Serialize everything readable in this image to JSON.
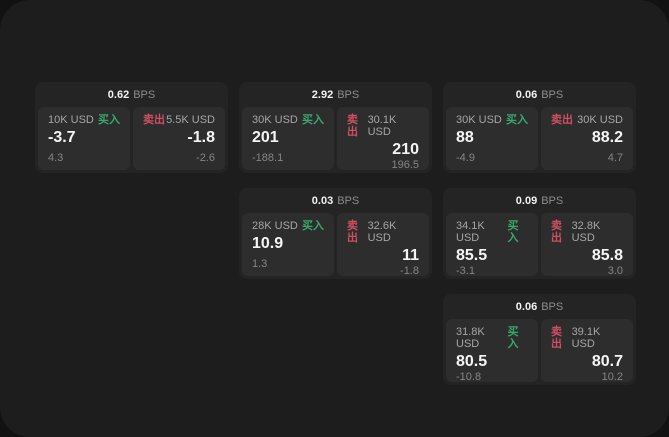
{
  "labels": {
    "bps": "BPS",
    "buy": "买入",
    "sell": "卖出"
  },
  "colors": {
    "buy_tag": "#3aa76d",
    "sell_tag": "#cc4f63",
    "panel_bg": "#1d1d1d",
    "card_bg": "#242424",
    "side_bg": "#2d2d2d"
  },
  "cards": [
    {
      "row": 1,
      "col": 1,
      "bps": "0.62",
      "buy": {
        "amount": "10K USD",
        "value": "-3.7",
        "sub": "4.3"
      },
      "sell": {
        "amount": "5.5K USD",
        "value": "-1.8",
        "sub": "-2.6"
      }
    },
    {
      "row": 1,
      "col": 2,
      "bps": "2.92",
      "buy": {
        "amount": "30K USD",
        "value": "201",
        "sub": "-188.1"
      },
      "sell": {
        "amount": "30.1K USD",
        "value": "210",
        "sub": "196.5"
      }
    },
    {
      "row": 1,
      "col": 3,
      "bps": "0.06",
      "buy": {
        "amount": "30K USD",
        "value": "88",
        "sub": "-4.9"
      },
      "sell": {
        "amount": "30K USD",
        "value": "88.2",
        "sub": "4.7"
      }
    },
    {
      "row": 2,
      "col": 2,
      "bps": "0.03",
      "buy": {
        "amount": "28K USD",
        "value": "10.9",
        "sub": "1.3"
      },
      "sell": {
        "amount": "32.6K USD",
        "value": "11",
        "sub": "-1.8"
      }
    },
    {
      "row": 2,
      "col": 3,
      "bps": "0.09",
      "buy": {
        "amount": "34.1K USD",
        "value": "85.5",
        "sub": "-3.1"
      },
      "sell": {
        "amount": "32.8K USD",
        "value": "85.8",
        "sub": "3.0"
      }
    },
    {
      "row": 3,
      "col": 3,
      "bps": "0.06",
      "buy": {
        "amount": "31.8K USD",
        "value": "80.5",
        "sub": "-10.8"
      },
      "sell": {
        "amount": "39.1K USD",
        "value": "80.7",
        "sub": "10.2"
      }
    }
  ]
}
